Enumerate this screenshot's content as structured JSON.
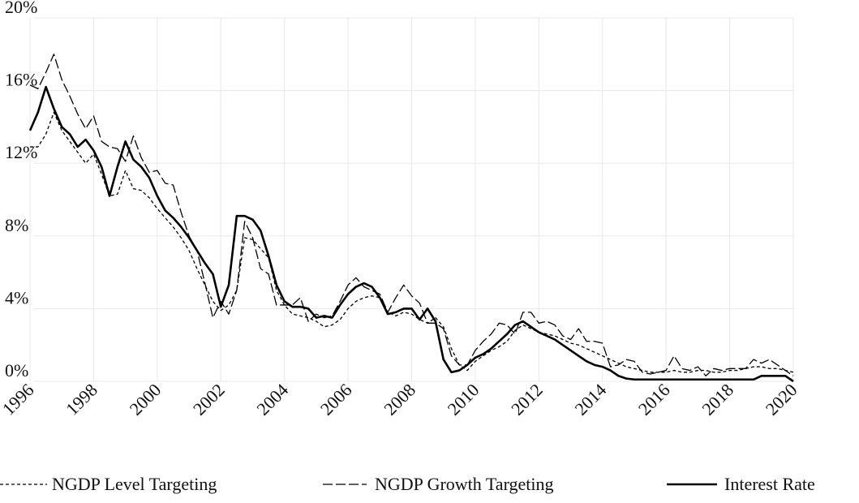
{
  "chart_data": {
    "type": "line",
    "x": [
      1996,
      1996.25,
      1996.5,
      1996.75,
      1997,
      1997.25,
      1997.5,
      1997.75,
      1998,
      1998.25,
      1998.5,
      1998.75,
      1999,
      1999.25,
      1999.5,
      1999.75,
      2000,
      2000.25,
      2000.5,
      2000.75,
      2001,
      2001.25,
      2001.5,
      2001.75,
      2002,
      2002.25,
      2002.5,
      2002.75,
      2003,
      2003.25,
      2003.5,
      2003.75,
      2004,
      2004.25,
      2004.5,
      2004.75,
      2005,
      2005.25,
      2005.5,
      2005.75,
      2006,
      2006.25,
      2006.5,
      2006.75,
      2007,
      2007.25,
      2007.5,
      2007.75,
      2008,
      2008.25,
      2008.5,
      2008.75,
      2009,
      2009.25,
      2009.5,
      2009.75,
      2010,
      2010.25,
      2010.5,
      2010.75,
      2011,
      2011.25,
      2011.5,
      2011.75,
      2012,
      2012.25,
      2012.5,
      2012.75,
      2013,
      2013.25,
      2013.5,
      2013.75,
      2014,
      2014.25,
      2014.5,
      2014.75,
      2015,
      2015.25,
      2015.5,
      2015.75,
      2016,
      2016.25,
      2016.5,
      2016.75,
      2017,
      2017.25,
      2017.5,
      2017.75,
      2018,
      2018.25,
      2018.5,
      2018.75,
      2019,
      2019.25,
      2019.5,
      2019.75,
      2020
    ],
    "series": [
      {
        "name": "NGDP Level Targeting",
        "color": "#000000",
        "dash": "4,3",
        "width": 1.3,
        "values": [
          12.9,
          12.9,
          13.6,
          14.8,
          13.8,
          13.2,
          12.6,
          12.0,
          12.5,
          11.4,
          10.2,
          10.3,
          11.6,
          10.6,
          10.5,
          10.1,
          9.5,
          9.0,
          8.5,
          7.9,
          7.2,
          6.2,
          5.3,
          4.4,
          3.9,
          4.2,
          5.0,
          7.9,
          7.8,
          7.3,
          6.8,
          5.0,
          4.2,
          3.7,
          3.6,
          3.5,
          3.3,
          3.0,
          3.1,
          3.4,
          4.0,
          4.4,
          4.6,
          4.7,
          4.6,
          3.8,
          3.6,
          3.8,
          3.7,
          3.4,
          3.2,
          3.5,
          3.0,
          1.8,
          0.9,
          0.6,
          1.1,
          1.4,
          1.7,
          1.9,
          2.2,
          2.8,
          3.1,
          2.9,
          2.7,
          2.6,
          2.5,
          2.3,
          2.1,
          2.0,
          1.8,
          1.6,
          1.4,
          1.2,
          1.0,
          0.8,
          0.7,
          0.6,
          0.5,
          0.5,
          0.5,
          0.6,
          0.5,
          0.5,
          0.6,
          0.6,
          0.5,
          0.5,
          0.6,
          0.6,
          0.7,
          0.8,
          0.8,
          0.7,
          0.7,
          0.6,
          0.5
        ]
      },
      {
        "name": "NGDP Growth Targeting",
        "color": "#000000",
        "dash": "12,4",
        "width": 1.3,
        "values": [
          16.3,
          16.1,
          17.0,
          18.0,
          16.6,
          15.7,
          14.7,
          13.9,
          14.6,
          13.2,
          12.9,
          12.8,
          12.1,
          13.5,
          12.3,
          11.5,
          11.6,
          10.9,
          10.8,
          9.3,
          8.0,
          7.2,
          5.4,
          3.5,
          4.4,
          3.7,
          5.0,
          8.8,
          7.9,
          6.2,
          5.9,
          4.2,
          4.2,
          4.2,
          4.6,
          3.3,
          3.7,
          3.5,
          3.6,
          4.4,
          5.3,
          5.7,
          5.2,
          5.0,
          4.8,
          3.8,
          4.6,
          5.3,
          4.7,
          4.3,
          3.2,
          3.2,
          2.9,
          1.4,
          0.9,
          0.9,
          1.7,
          2.2,
          2.6,
          3.2,
          3.1,
          2.6,
          3.8,
          3.8,
          3.2,
          3.3,
          3.1,
          2.5,
          2.3,
          2.9,
          2.2,
          2.2,
          2.1,
          0.8,
          0.9,
          1.2,
          1.1,
          0.5,
          0.4,
          0.5,
          0.6,
          1.4,
          0.7,
          0.6,
          0.8,
          0.3,
          0.7,
          0.6,
          0.7,
          0.7,
          0.7,
          1.2,
          1.0,
          1.2,
          0.9,
          0.6,
          0.3
        ]
      },
      {
        "name": "Interest Rate",
        "color": "#000000",
        "dash": "none",
        "width": 2.6,
        "values": [
          13.8,
          14.8,
          16.2,
          15.0,
          14.0,
          13.6,
          12.9,
          13.3,
          12.7,
          11.8,
          10.2,
          11.8,
          13.2,
          12.2,
          11.8,
          11.2,
          10.2,
          9.4,
          9.0,
          8.5,
          7.9,
          7.2,
          6.5,
          5.9,
          4.1,
          5.3,
          9.1,
          9.1,
          8.9,
          8.3,
          6.9,
          5.3,
          4.4,
          4.1,
          4.1,
          4.0,
          3.5,
          3.6,
          3.5,
          4.2,
          4.8,
          5.2,
          5.4,
          5.2,
          4.6,
          3.7,
          3.8,
          4.0,
          4.0,
          3.4,
          4.0,
          3.3,
          1.2,
          0.5,
          0.6,
          0.9,
          1.3,
          1.5,
          1.8,
          2.2,
          2.6,
          3.1,
          3.3,
          3.0,
          2.7,
          2.5,
          2.3,
          2.0,
          1.7,
          1.4,
          1.1,
          0.9,
          0.8,
          0.6,
          0.3,
          0.15,
          0.1,
          0.1,
          0.1,
          0.1,
          0.1,
          0.1,
          0.1,
          0.1,
          0.1,
          0.1,
          0.1,
          0.1,
          0.1,
          0.1,
          0.1,
          0.1,
          0.3,
          0.3,
          0.3,
          0.3,
          0.0
        ]
      }
    ],
    "xlim": [
      1996,
      2020
    ],
    "xticks": [
      1996,
      1998,
      2000,
      2002,
      2004,
      2006,
      2008,
      2010,
      2012,
      2014,
      2016,
      2018,
      2020
    ],
    "ylim": [
      0,
      20
    ],
    "yticks": [
      {
        "value": 0,
        "label": "0%"
      },
      {
        "value": 4,
        "label": "4%"
      },
      {
        "value": 8,
        "label": "8%"
      },
      {
        "value": 12,
        "label": "12%"
      },
      {
        "value": 16,
        "label": "16%"
      },
      {
        "value": 20,
        "label": "20%"
      }
    ],
    "grid": true,
    "legend": "bottom"
  }
}
